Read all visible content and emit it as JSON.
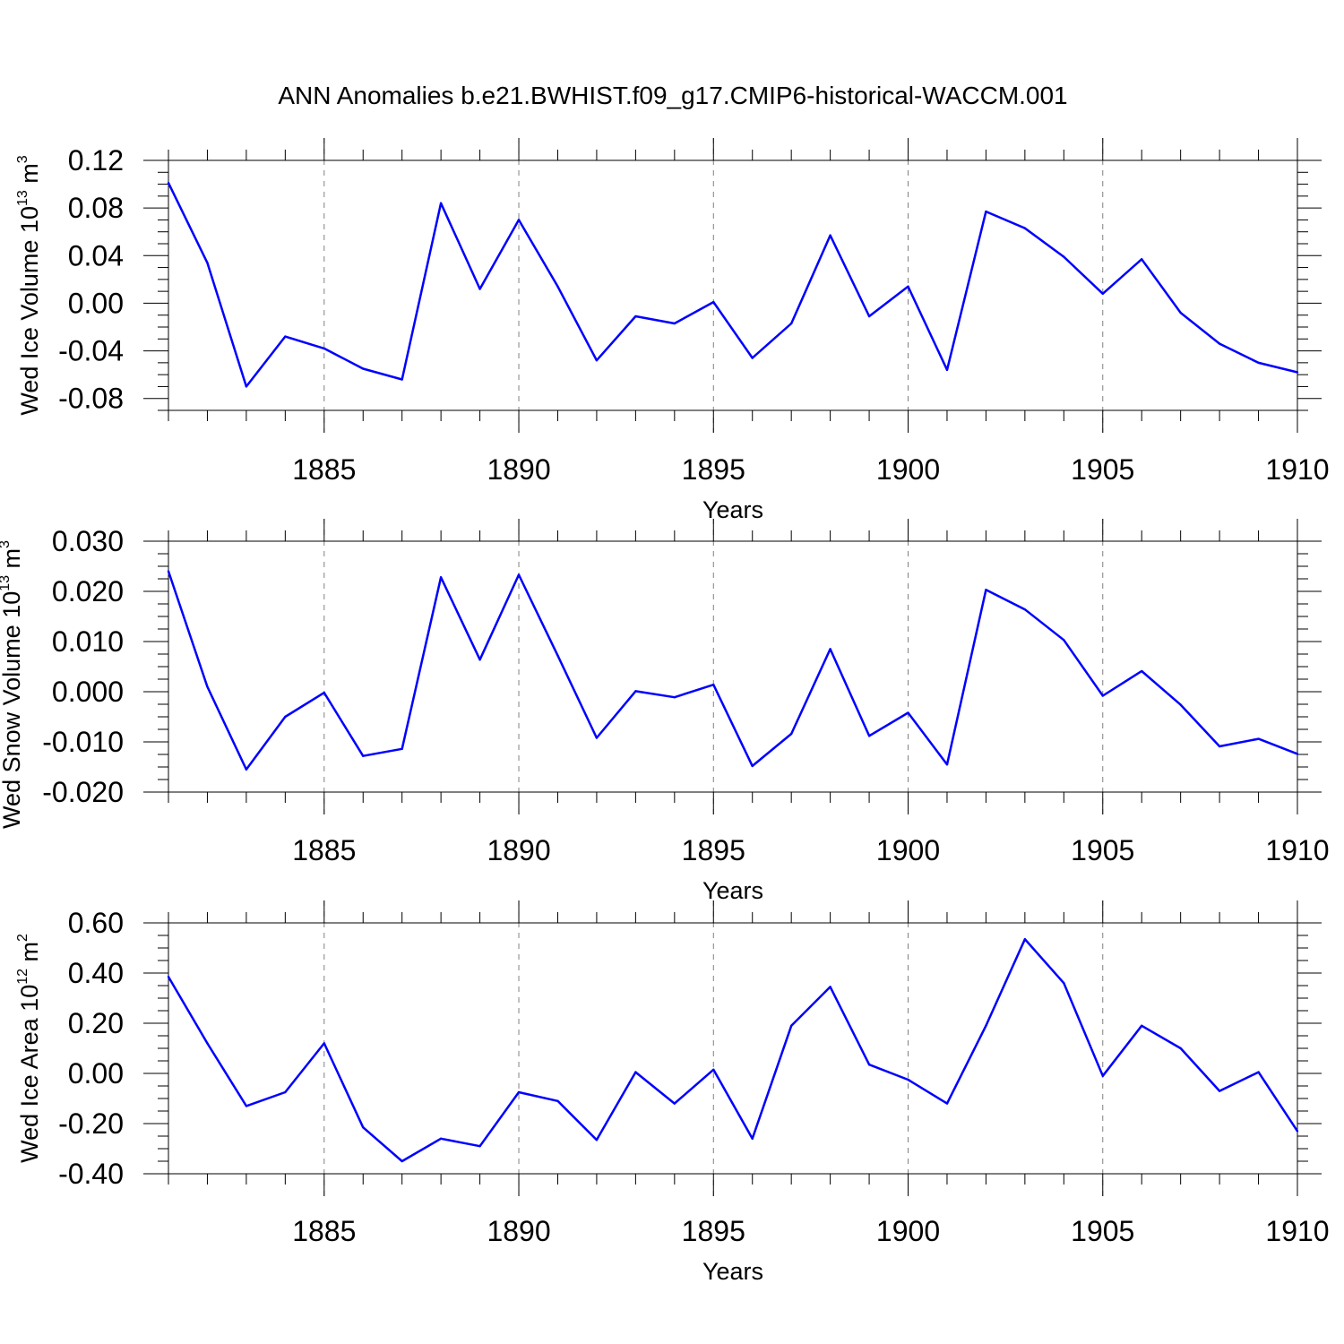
{
  "title": "ANN Anomalies b.e21.BWHIST.f09_g17.CMIP6-historical-WACCM.001",
  "colors": {
    "series": "#0000ff",
    "axis": "#000000",
    "grid": "#808080"
  },
  "chart_data": [
    {
      "type": "line",
      "ylabel": {
        "text": "Wed Ice Volume 10",
        "exp": "13",
        "unit": " m",
        "unit_exp": "3"
      },
      "xlabel": "Years",
      "xlim": [
        1881,
        1910
      ],
      "ylim": [
        -0.09,
        0.12
      ],
      "yticks": [
        0.12,
        0.08,
        0.04,
        0.0,
        -0.04,
        -0.08
      ],
      "ytick_labels": [
        "0.12",
        "0.08",
        "0.04",
        "0.00",
        "-0.04",
        "-0.08"
      ],
      "xticks": [
        1885,
        1890,
        1895,
        1900,
        1905,
        1910
      ],
      "xtick_labels": [
        "1885",
        "1890",
        "1895",
        "1900",
        "1905",
        "1910"
      ],
      "grid": "vertical dashed at major x ticks",
      "x": [
        1881,
        1882,
        1883,
        1884,
        1885,
        1886,
        1887,
        1888,
        1889,
        1890,
        1891,
        1892,
        1893,
        1894,
        1895,
        1896,
        1897,
        1898,
        1899,
        1900,
        1901,
        1902,
        1903,
        1904,
        1905,
        1906,
        1907,
        1908,
        1909,
        1910
      ],
      "values": [
        0.101,
        0.034,
        -0.07,
        -0.028,
        -0.038,
        -0.055,
        -0.064,
        0.084,
        0.012,
        0.07,
        0.014,
        -0.048,
        -0.011,
        -0.017,
        0.001,
        -0.046,
        -0.017,
        0.057,
        -0.011,
        0.014,
        -0.056,
        0.077,
        0.063,
        0.039,
        0.008,
        0.037,
        -0.008,
        -0.034,
        -0.05,
        -0.058
      ]
    },
    {
      "type": "line",
      "ylabel": {
        "text": "Wed Snow Volume 10",
        "exp": "13",
        "unit": " m",
        "unit_exp": "3"
      },
      "xlabel": "Years",
      "xlim": [
        1881,
        1910
      ],
      "ylim": [
        -0.02,
        0.03
      ],
      "yticks": [
        0.03,
        0.02,
        0.01,
        0.0,
        -0.01,
        -0.02
      ],
      "ytick_labels": [
        "0.030",
        "0.020",
        "0.010",
        "0.000",
        "-0.010",
        "-0.020"
      ],
      "xticks": [
        1885,
        1890,
        1895,
        1900,
        1905,
        1910
      ],
      "xtick_labels": [
        "1885",
        "1890",
        "1895",
        "1900",
        "1905",
        "1910"
      ],
      "grid": "vertical dashed at major x ticks",
      "x": [
        1881,
        1882,
        1883,
        1884,
        1885,
        1886,
        1887,
        1888,
        1889,
        1890,
        1891,
        1892,
        1893,
        1894,
        1895,
        1896,
        1897,
        1898,
        1899,
        1900,
        1901,
        1902,
        1903,
        1904,
        1905,
        1906,
        1907,
        1908,
        1909,
        1910
      ],
      "values": [
        0.024,
        0.001,
        -0.0155,
        -0.005,
        -0.0002,
        -0.0128,
        -0.0114,
        0.0228,
        0.0064,
        0.0233,
        0.0072,
        -0.0092,
        0.0001,
        -0.0011,
        0.0014,
        -0.0148,
        -0.0084,
        0.0085,
        -0.0088,
        -0.0042,
        -0.0145,
        0.0203,
        0.0164,
        0.0103,
        -0.0008,
        0.0041,
        -0.0026,
        -0.0109,
        -0.0094,
        -0.0124
      ]
    },
    {
      "type": "line",
      "ylabel": {
        "text": "Wed Ice Area 10",
        "exp": "12",
        "unit": " m",
        "unit_exp": "2"
      },
      "xlabel": "Years",
      "xlim": [
        1881,
        1910
      ],
      "ylim": [
        -0.4,
        0.6
      ],
      "yticks": [
        0.6,
        0.4,
        0.2,
        0.0,
        -0.2,
        -0.4
      ],
      "ytick_labels": [
        "0.60",
        "0.40",
        "0.20",
        "0.00",
        "-0.20",
        "-0.40"
      ],
      "xticks": [
        1885,
        1890,
        1895,
        1900,
        1905,
        1910
      ],
      "xtick_labels": [
        "1885",
        "1890",
        "1895",
        "1900",
        "1905",
        "1910"
      ],
      "grid": "vertical dashed at major x ticks",
      "x": [
        1881,
        1882,
        1883,
        1884,
        1885,
        1886,
        1887,
        1888,
        1889,
        1890,
        1891,
        1892,
        1893,
        1894,
        1895,
        1896,
        1897,
        1898,
        1899,
        1900,
        1901,
        1902,
        1903,
        1904,
        1905,
        1906,
        1907,
        1908,
        1909,
        1910
      ],
      "values": [
        0.385,
        0.12,
        -0.13,
        -0.075,
        0.12,
        -0.215,
        -0.35,
        -0.26,
        -0.29,
        -0.075,
        -0.11,
        -0.265,
        0.005,
        -0.12,
        0.015,
        -0.26,
        0.19,
        0.345,
        0.035,
        -0.025,
        -0.12,
        0.19,
        0.535,
        0.36,
        -0.01,
        0.19,
        0.1,
        -0.07,
        0.005,
        -0.23
      ]
    }
  ]
}
